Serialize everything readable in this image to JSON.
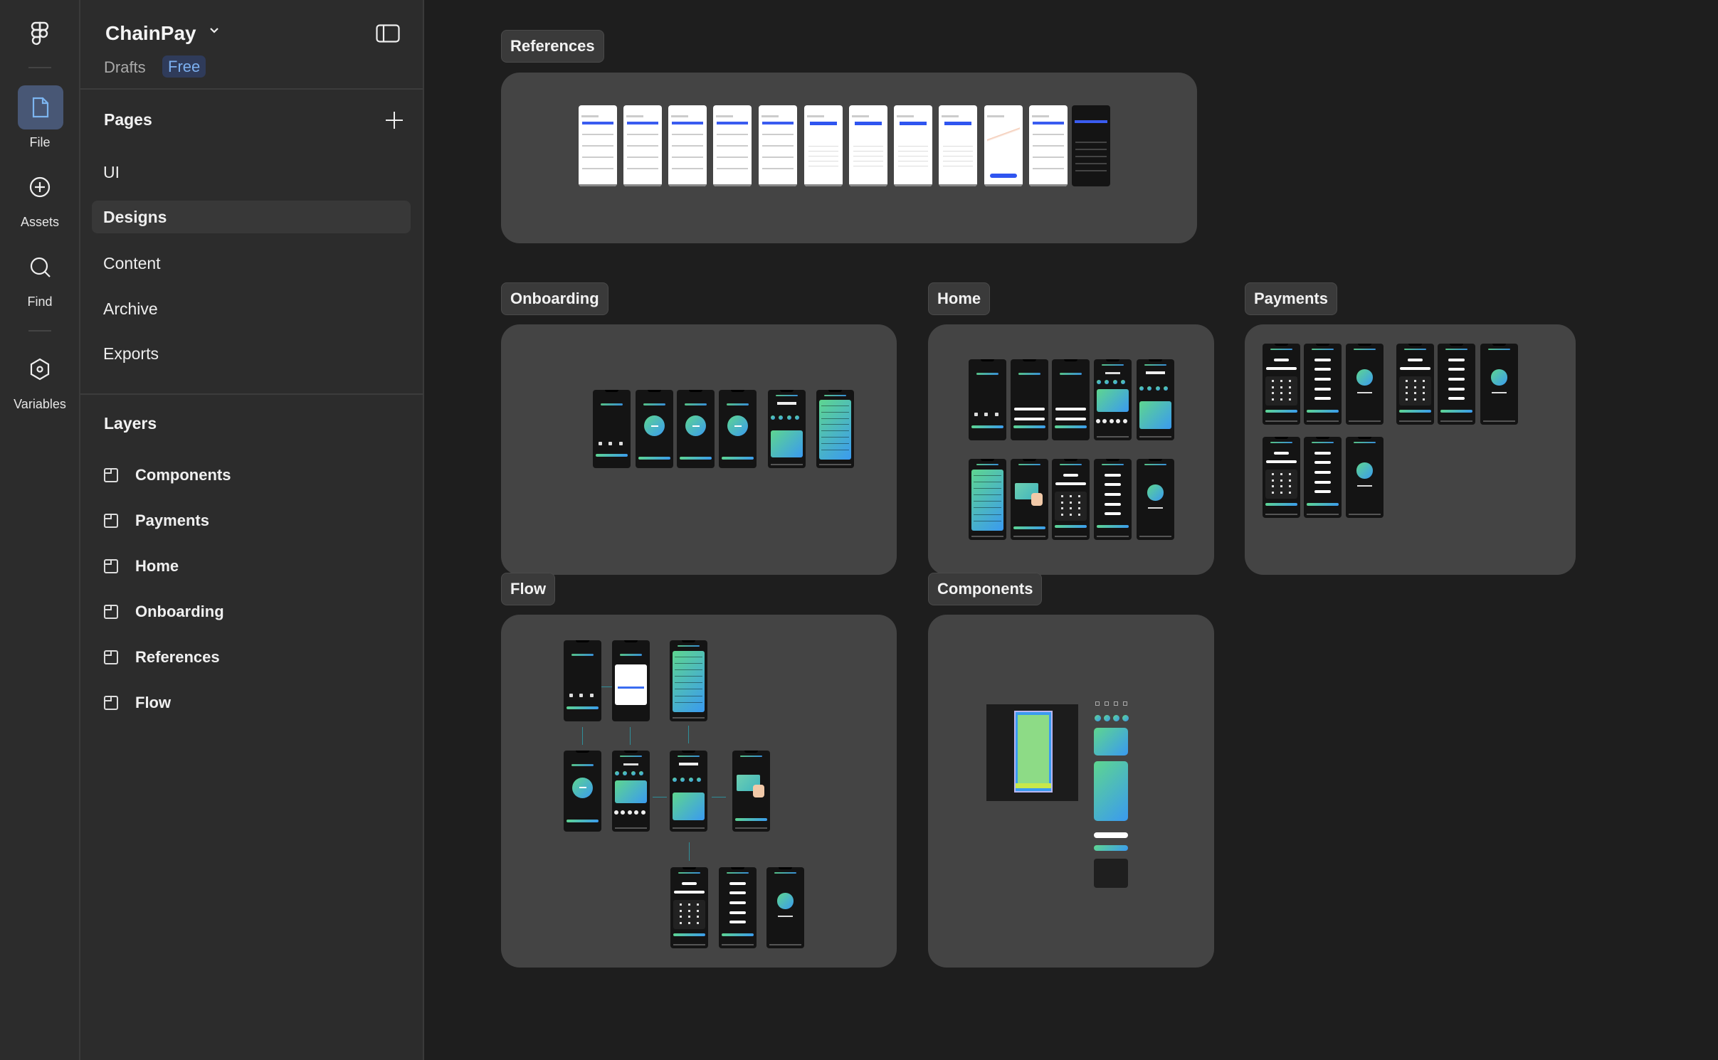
{
  "rail": {
    "items": [
      {
        "label": "File",
        "icon": "file-icon",
        "active": true
      },
      {
        "label": "Assets",
        "icon": "plus-circle-icon"
      },
      {
        "label": "Find",
        "icon": "search-icon"
      },
      {
        "label": "Variables",
        "icon": "variables-icon"
      }
    ]
  },
  "file": {
    "name": "ChainPay",
    "location": "Drafts",
    "plan_badge": "Free"
  },
  "pages": {
    "title": "Pages",
    "items": [
      {
        "label": "UI"
      },
      {
        "label": "Designs",
        "selected": true
      },
      {
        "label": "Content"
      },
      {
        "label": "Archive"
      },
      {
        "label": "Exports"
      }
    ]
  },
  "layers": {
    "title": "Layers",
    "items": [
      {
        "label": "Components"
      },
      {
        "label": "Payments"
      },
      {
        "label": "Home"
      },
      {
        "label": "Onboarding"
      },
      {
        "label": "References"
      },
      {
        "label": "Flow"
      }
    ]
  },
  "canvas": {
    "sections": [
      {
        "label": "References"
      },
      {
        "label": "Onboarding"
      },
      {
        "label": "Home"
      },
      {
        "label": "Payments"
      },
      {
        "label": "Flow"
      },
      {
        "label": "Components"
      }
    ]
  },
  "colors": {
    "accent_green": "#5ed68f",
    "accent_blue": "#3a9af0",
    "badge_text": "#7cb0f0",
    "reference_blue": "#2f55f0"
  }
}
